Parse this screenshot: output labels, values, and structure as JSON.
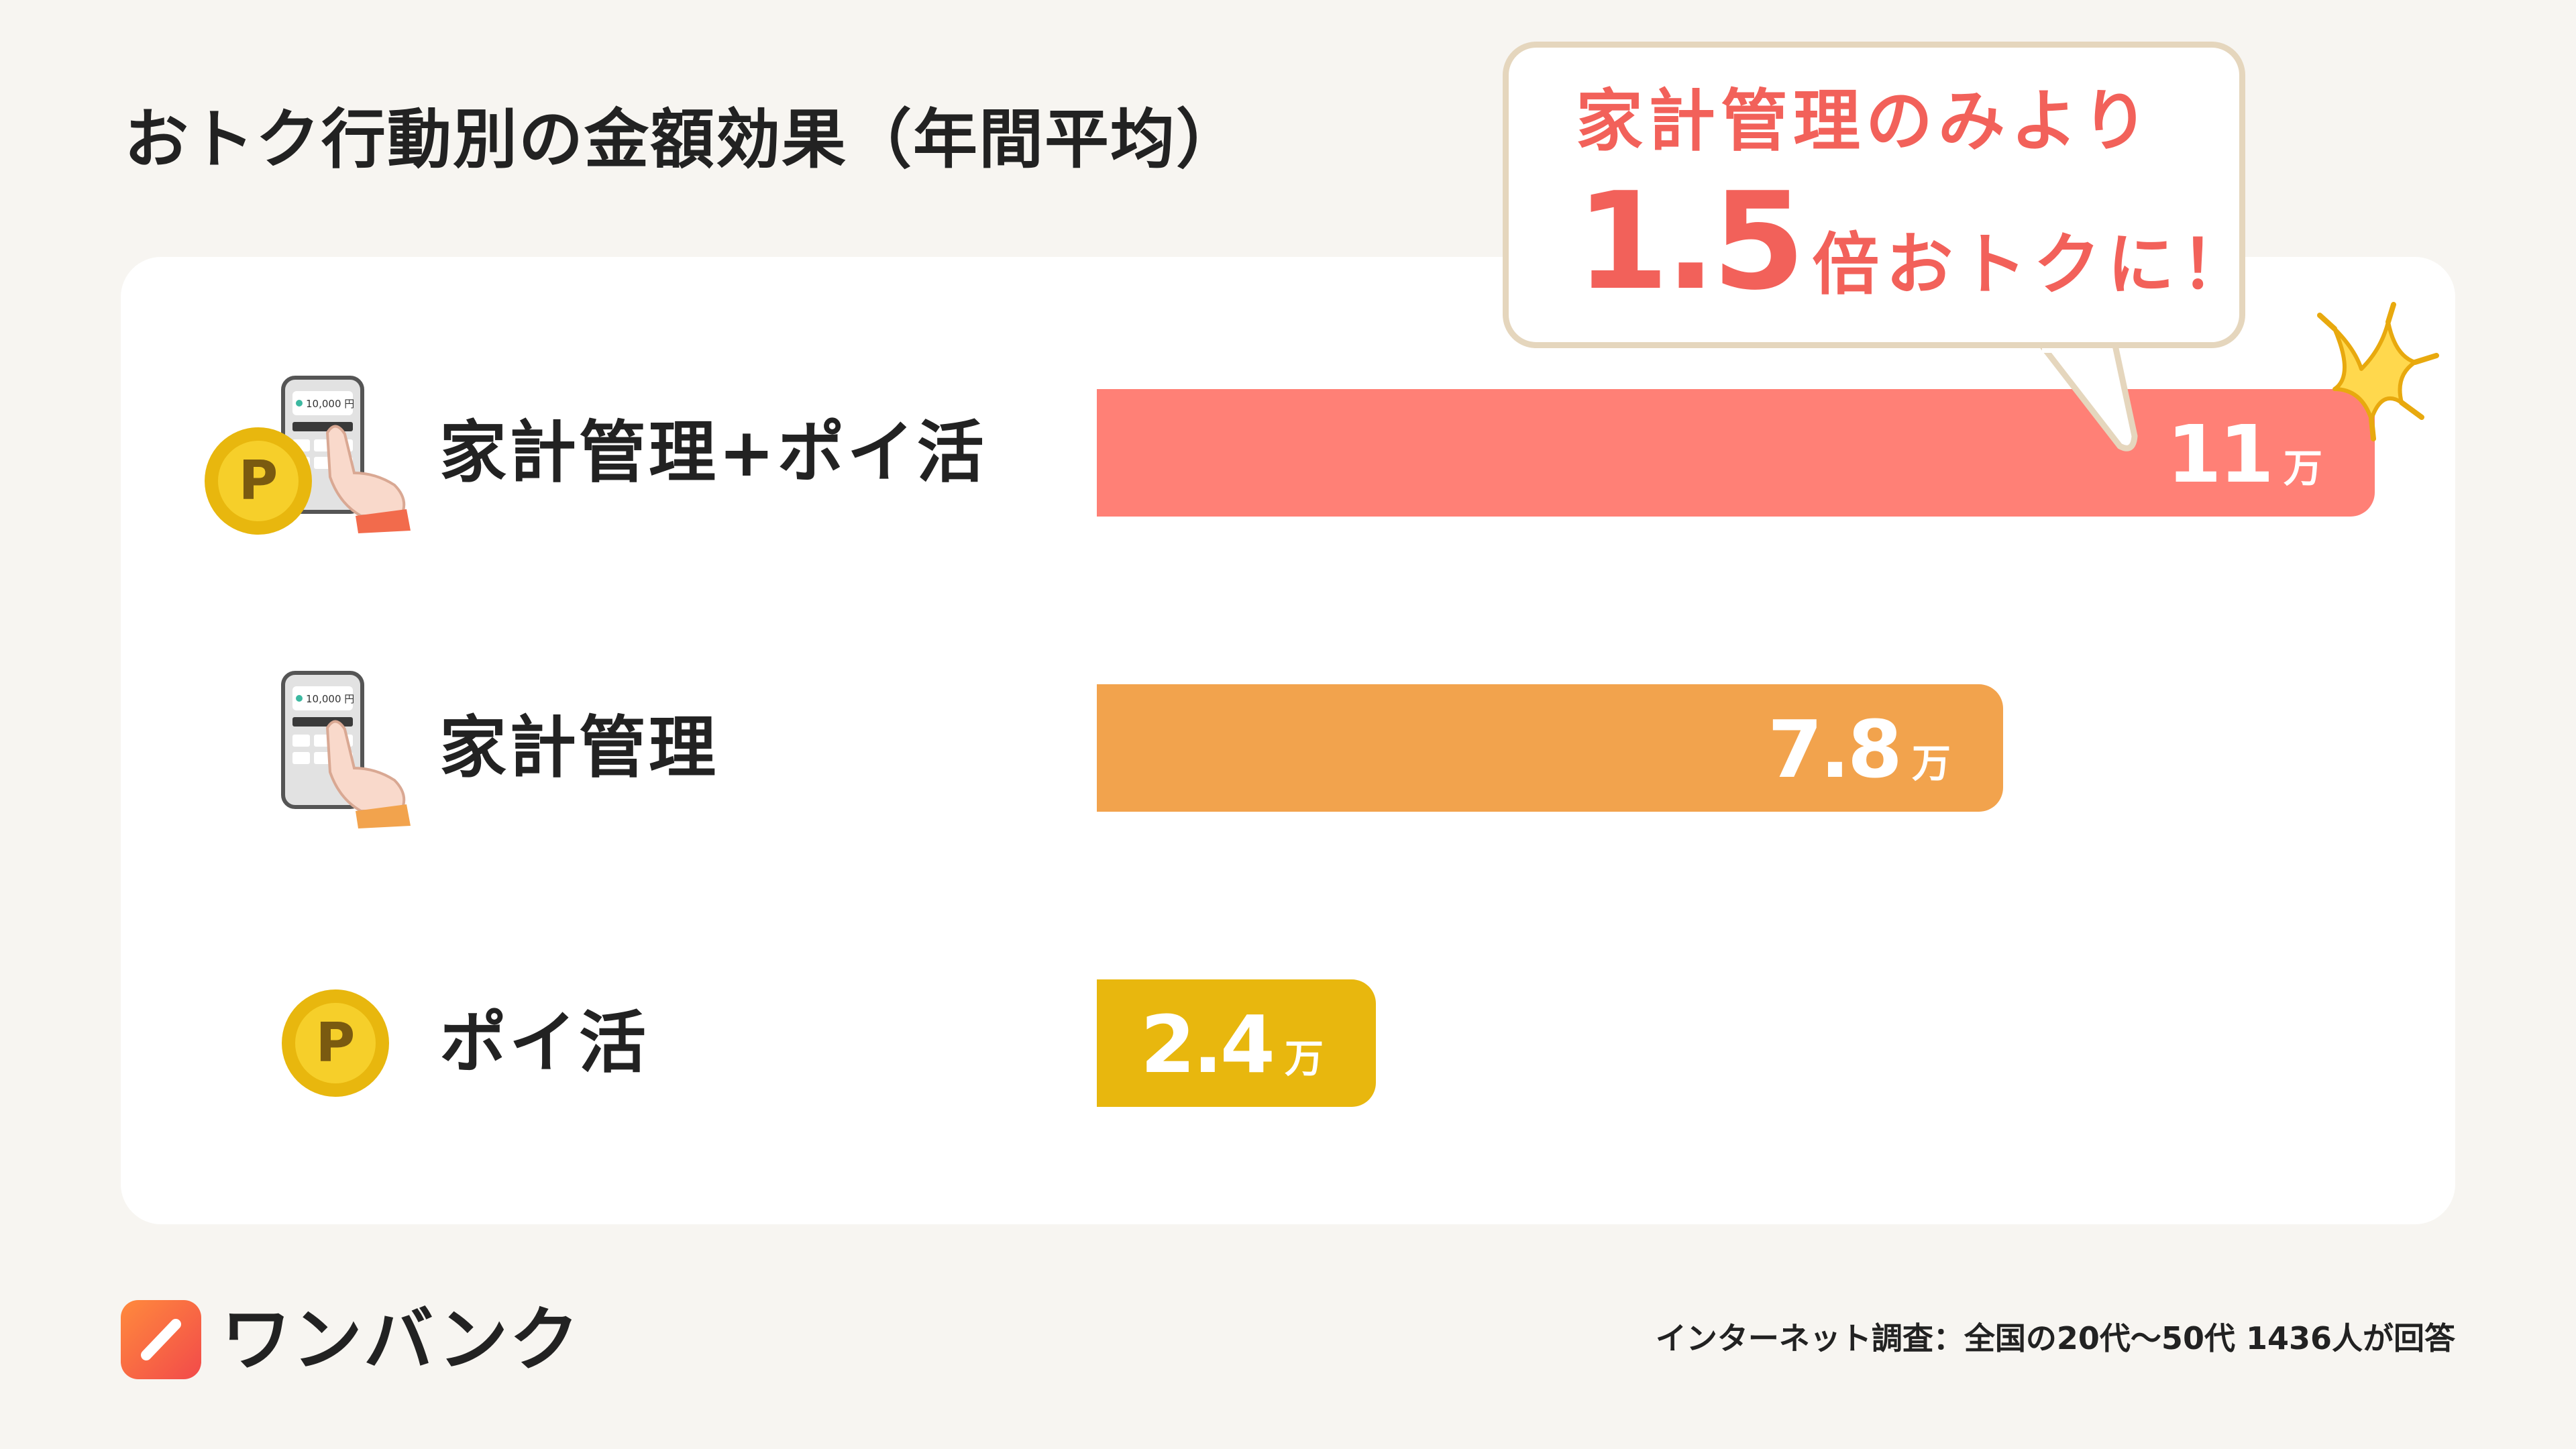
{
  "title": "おトク行動別の金額効果（年間平均）",
  "callout": {
    "line1": "家計管理のみより",
    "line2_big": "1.5",
    "line2_rest": "倍おトクに！"
  },
  "chart_data": {
    "type": "bar",
    "orientation": "horizontal",
    "title": "おトク行動別の金額効果（年間平均）",
    "unit": "万",
    "categories": [
      "家計管理+ポイ活",
      "家計管理",
      "ポイ活"
    ],
    "values": [
      11,
      7.8,
      2.4
    ],
    "value_labels": [
      "11",
      "7.8",
      "2.4"
    ],
    "colors": [
      "#ff8076",
      "#f2a34d",
      "#e8b70e"
    ],
    "xlim": [
      0,
      11
    ]
  },
  "brand": {
    "name": "ワンバンク"
  },
  "footnote": "インターネット調査：全国の20代〜50代 1436人が回答",
  "icons": {
    "row1": [
      "phone-tap-icon",
      "point-coin-icon"
    ],
    "row2": [
      "phone-tap-icon"
    ],
    "row3": [
      "point-coin-icon"
    ],
    "phone_screen_text": "10,000 円",
    "coin_letter": "P"
  }
}
